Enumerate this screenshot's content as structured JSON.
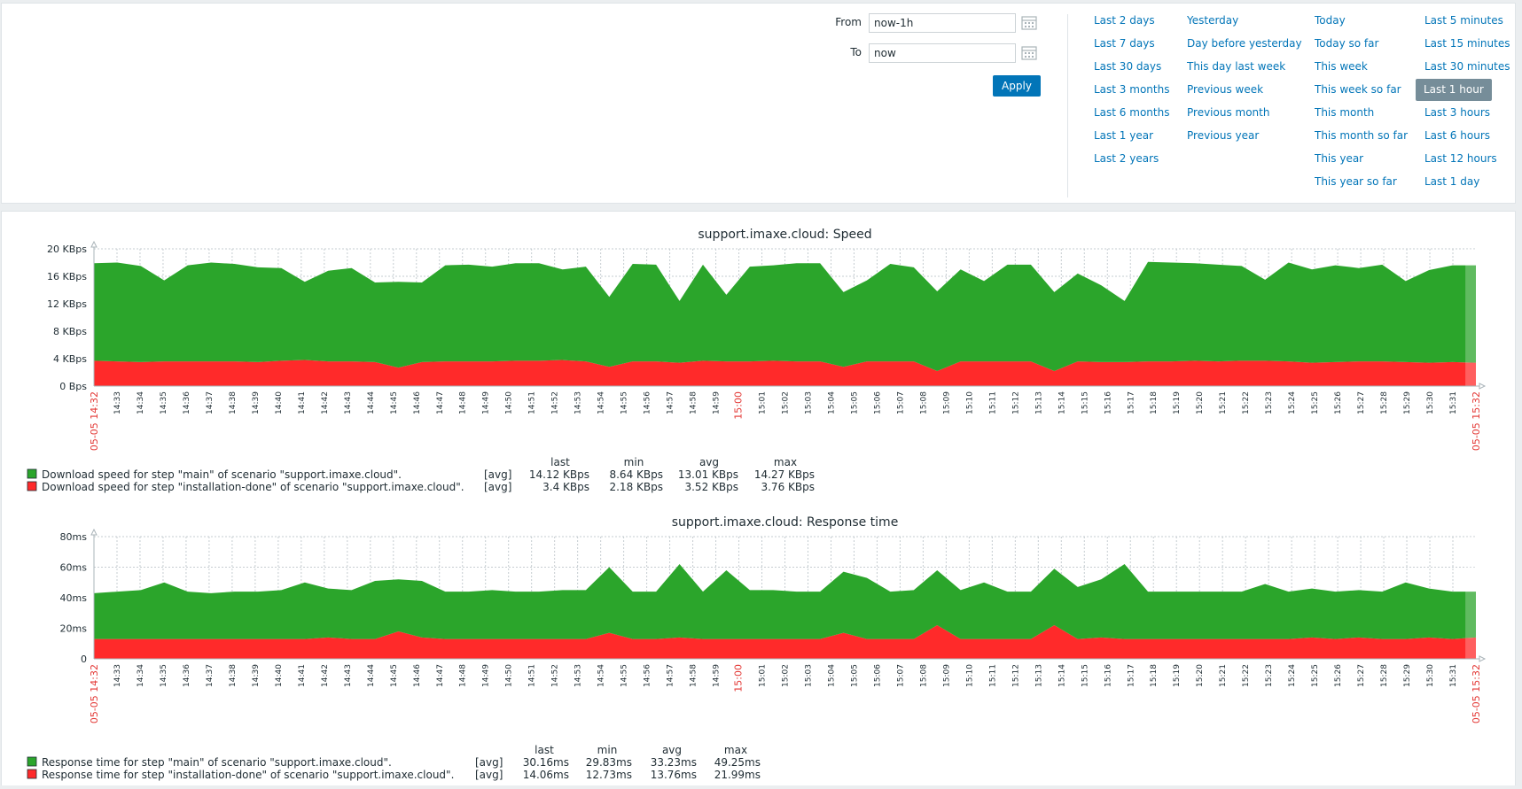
{
  "time_filter": {
    "from_label": "From",
    "from_value": "now-1h",
    "to_label": "To",
    "to_value": "now",
    "apply_label": "Apply"
  },
  "quick_ranges": {
    "col1": [
      "Last 2 days",
      "Last 7 days",
      "Last 30 days",
      "Last 3 months",
      "Last 6 months",
      "Last 1 year",
      "Last 2 years"
    ],
    "col2": [
      "Yesterday",
      "Day before yesterday",
      "This day last week",
      "Previous week",
      "Previous month",
      "Previous year"
    ],
    "col3": [
      "Today",
      "Today so far",
      "This week",
      "This week so far",
      "This month",
      "This month so far",
      "This year",
      "This year so far"
    ],
    "col4": [
      "Last 5 minutes",
      "Last 15 minutes",
      "Last 30 minutes",
      "Last 1 hour",
      "Last 3 hours",
      "Last 6 hours",
      "Last 12 hours",
      "Last 1 day"
    ],
    "selected": "Last 1 hour"
  },
  "colors": {
    "series_main": "#2ba52b",
    "series_installation": "#ff2a2a",
    "accent": "#0275b8",
    "selected_bg": "#768d99",
    "red_text": "#e33734"
  },
  "chart_data": [
    {
      "type": "area",
      "title": "support.imaxe.cloud: Speed",
      "y_ticks": [
        "0 Bps",
        "4 KBps",
        "8 KBps",
        "12 KBps",
        "16 KBps",
        "20 KBps"
      ],
      "ylim": [
        0,
        20
      ],
      "y_unit": "KBps",
      "x_start_label": "05-05 14:32",
      "x_end_label": "05-05 15:32",
      "x_ticks": [
        "14:33",
        "14:34",
        "14:35",
        "14:36",
        "14:37",
        "14:38",
        "14:39",
        "14:40",
        "14:41",
        "14:42",
        "14:43",
        "14:44",
        "14:45",
        "14:46",
        "14:47",
        "14:48",
        "14:49",
        "14:50",
        "14:51",
        "14:52",
        "14:53",
        "14:54",
        "14:55",
        "14:56",
        "14:57",
        "14:58",
        "14:59",
        "15:00",
        "15:01",
        "15:02",
        "15:03",
        "15:04",
        "15:05",
        "15:06",
        "15:07",
        "15:08",
        "15:09",
        "15:10",
        "15:11",
        "15:12",
        "15:13",
        "15:14",
        "15:15",
        "15:16",
        "15:17",
        "15:18",
        "15:19",
        "15:20",
        "15:21",
        "15:22",
        "15:23",
        "15:24",
        "15:25",
        "15:26",
        "15:27",
        "15:28",
        "15:29",
        "15:30",
        "15:31"
      ],
      "highlight_tick": "15:00",
      "stacked": true,
      "series": [
        {
          "name": "Download speed for step \"installation-done\" of scenario \"support.imaxe.cloud\".",
          "color": "#ff2a2a",
          "values": [
            3.7,
            3.6,
            3.5,
            3.6,
            3.6,
            3.6,
            3.6,
            3.5,
            3.7,
            3.8,
            3.6,
            3.6,
            3.5,
            2.7,
            3.5,
            3.6,
            3.6,
            3.6,
            3.7,
            3.7,
            3.8,
            3.6,
            2.8,
            3.6,
            3.6,
            3.4,
            3.7,
            3.6,
            3.6,
            3.7,
            3.6,
            3.6,
            2.8,
            3.6,
            3.6,
            3.6,
            2.2,
            3.6,
            3.6,
            3.6,
            3.6,
            2.2,
            3.6,
            3.5,
            3.5,
            3.6,
            3.6,
            3.7,
            3.6,
            3.7,
            3.7,
            3.6,
            3.4,
            3.5,
            3.6,
            3.6,
            3.5,
            3.4,
            3.5,
            3.4
          ]
        },
        {
          "name": "Download speed for step \"main\" of scenario \"support.imaxe.cloud\".",
          "color": "#2ba52b",
          "values": [
            14.2,
            14.4,
            14.0,
            11.8,
            14.0,
            14.4,
            14.2,
            13.8,
            13.5,
            11.4,
            13.2,
            13.6,
            11.6,
            12.5,
            11.6,
            14.0,
            14.1,
            13.8,
            14.2,
            14.2,
            13.2,
            13.8,
            10.2,
            14.2,
            14.1,
            9.0,
            14.0,
            9.7,
            13.8,
            13.9,
            14.3,
            14.3,
            10.9,
            11.8,
            14.2,
            13.7,
            11.6,
            13.4,
            11.7,
            14.1,
            14.1,
            11.5,
            12.8,
            11.2,
            8.9,
            14.5,
            14.4,
            14.2,
            14.1,
            13.8,
            11.8,
            14.4,
            13.6,
            14.1,
            13.6,
            14.1,
            11.8,
            13.5,
            14.1,
            14.2
          ]
        }
      ],
      "legend": [
        {
          "label": "Download speed for step \"main\" of scenario \"support.imaxe.cloud\".",
          "func": "[avg]",
          "last": "14.12 KBps",
          "min": "8.64 KBps",
          "avg": "13.01 KBps",
          "max": "14.27 KBps",
          "color": "#2ba52b"
        },
        {
          "label": "Download speed for step \"installation-done\" of scenario \"support.imaxe.cloud\".",
          "func": "[avg]",
          "last": "3.4 KBps",
          "min": "2.18 KBps",
          "avg": "3.52 KBps",
          "max": "3.76 KBps",
          "color": "#ff2a2a"
        }
      ],
      "legend_headers": [
        "last",
        "min",
        "avg",
        "max"
      ]
    },
    {
      "type": "area",
      "title": "support.imaxe.cloud: Response time",
      "y_ticks": [
        "0",
        "20ms",
        "40ms",
        "60ms",
        "80ms"
      ],
      "ylim": [
        0,
        80
      ],
      "y_unit": "ms",
      "x_start_label": "05-05 14:32",
      "x_end_label": "05-05 15:32",
      "x_ticks": [
        "14:33",
        "14:34",
        "14:35",
        "14:36",
        "14:37",
        "14:38",
        "14:39",
        "14:40",
        "14:41",
        "14:42",
        "14:43",
        "14:44",
        "14:45",
        "14:46",
        "14:47",
        "14:48",
        "14:49",
        "14:50",
        "14:51",
        "14:52",
        "14:53",
        "14:54",
        "14:55",
        "14:56",
        "14:57",
        "14:58",
        "14:59",
        "15:00",
        "15:01",
        "15:02",
        "15:03",
        "15:04",
        "15:05",
        "15:06",
        "15:07",
        "15:08",
        "15:09",
        "15:10",
        "15:11",
        "15:12",
        "15:13",
        "15:14",
        "15:15",
        "15:16",
        "15:17",
        "15:18",
        "15:19",
        "15:20",
        "15:21",
        "15:22",
        "15:23",
        "15:24",
        "15:25",
        "15:26",
        "15:27",
        "15:28",
        "15:29",
        "15:30",
        "15:31"
      ],
      "highlight_tick": "15:00",
      "stacked": true,
      "series": [
        {
          "name": "Response time for step \"installation-done\" of scenario \"support.imaxe.cloud\".",
          "color": "#ff2a2a",
          "values": [
            13,
            13,
            13,
            13,
            13,
            13,
            13,
            13,
            13,
            13,
            14,
            13,
            13,
            18,
            14,
            13,
            13,
            13,
            13,
            13,
            13,
            13,
            17,
            13,
            13,
            14,
            13,
            13,
            13,
            13,
            13,
            13,
            17,
            13,
            13,
            13,
            22,
            13,
            13,
            13,
            13,
            22,
            13,
            14,
            13,
            13,
            13,
            13,
            13,
            13,
            13,
            13,
            14,
            13,
            14,
            13,
            13,
            14,
            13,
            14
          ]
        },
        {
          "name": "Response time for step \"main\" of scenario \"support.imaxe.cloud\".",
          "color": "#2ba52b",
          "values": [
            30,
            31,
            32,
            37,
            31,
            30,
            31,
            31,
            32,
            37,
            32,
            32,
            38,
            34,
            37,
            31,
            31,
            32,
            31,
            31,
            32,
            32,
            43,
            31,
            31,
            48,
            31,
            45,
            32,
            32,
            31,
            31,
            40,
            40,
            31,
            32,
            36,
            32,
            37,
            31,
            31,
            37,
            34,
            38,
            49,
            31,
            31,
            31,
            31,
            31,
            36,
            31,
            32,
            31,
            31,
            31,
            37,
            32,
            31,
            30
          ]
        }
      ],
      "legend": [
        {
          "label": "Response time for step \"main\" of scenario \"support.imaxe.cloud\".",
          "func": "[avg]",
          "last": "30.16ms",
          "min": "29.83ms",
          "avg": "33.23ms",
          "max": "49.25ms",
          "color": "#2ba52b"
        },
        {
          "label": "Response time for step \"installation-done\" of scenario \"support.imaxe.cloud\".",
          "func": "[avg]",
          "last": "14.06ms",
          "min": "12.73ms",
          "avg": "13.76ms",
          "max": "21.99ms",
          "color": "#ff2a2a"
        }
      ],
      "legend_headers": [
        "last",
        "min",
        "avg",
        "max"
      ]
    }
  ]
}
